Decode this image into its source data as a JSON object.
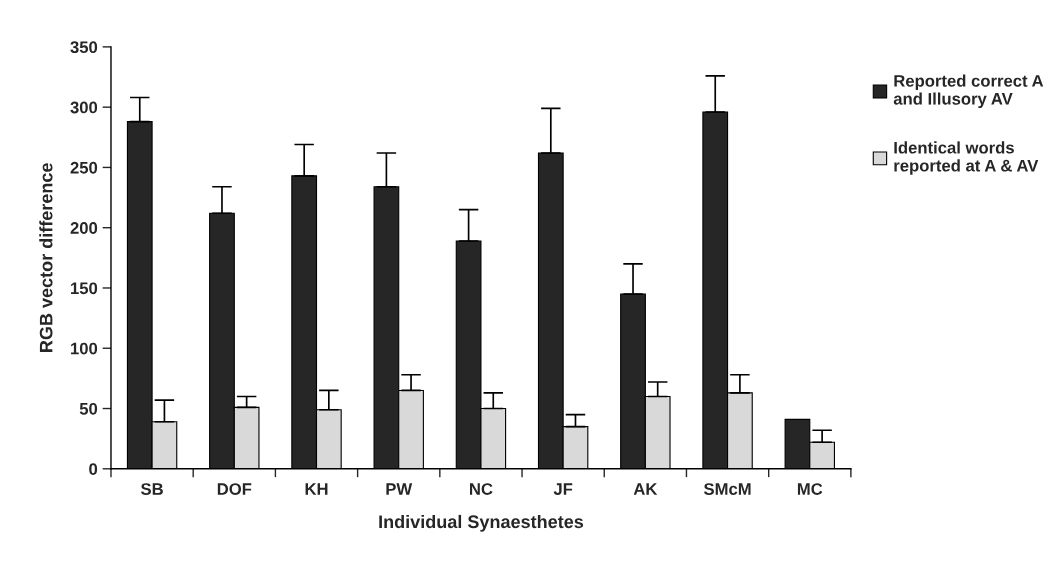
{
  "chart_data": {
    "type": "bar",
    "xlabel": "Individual Synaesthetes",
    "ylabel": "RGB vector difference",
    "categories": [
      "SB",
      "DOF",
      "KH",
      "PW",
      "NC",
      "JF",
      "AK",
      "SMcM",
      "MC"
    ],
    "series": [
      {
        "name": "Reported correct A and Illusory AV",
        "color": "#262626",
        "values": [
          288,
          212,
          243,
          234,
          189,
          262,
          145,
          296,
          41
        ],
        "errors": [
          [
            288,
            308
          ],
          [
            212,
            234
          ],
          [
            243,
            269
          ],
          [
            234,
            262
          ],
          [
            189,
            215
          ],
          [
            262,
            299
          ],
          [
            145,
            170
          ],
          [
            296,
            326
          ],
          null
        ]
      },
      {
        "name": "Identical words reported at A & AV",
        "color": "#d9d9d9",
        "values": [
          39,
          51,
          49,
          65,
          50,
          35,
          60,
          63,
          22
        ],
        "errors": [
          [
            39,
            57
          ],
          [
            51,
            60
          ],
          [
            49,
            65
          ],
          [
            65,
            78
          ],
          [
            50,
            63
          ],
          [
            35,
            45
          ],
          [
            60,
            72
          ],
          [
            63,
            78
          ],
          [
            22,
            32
          ]
        ]
      }
    ],
    "ylim": [
      0,
      350
    ],
    "yticks": [
      0,
      50,
      100,
      150,
      200,
      250,
      300,
      350
    ],
    "grid": false,
    "legend": "right"
  }
}
